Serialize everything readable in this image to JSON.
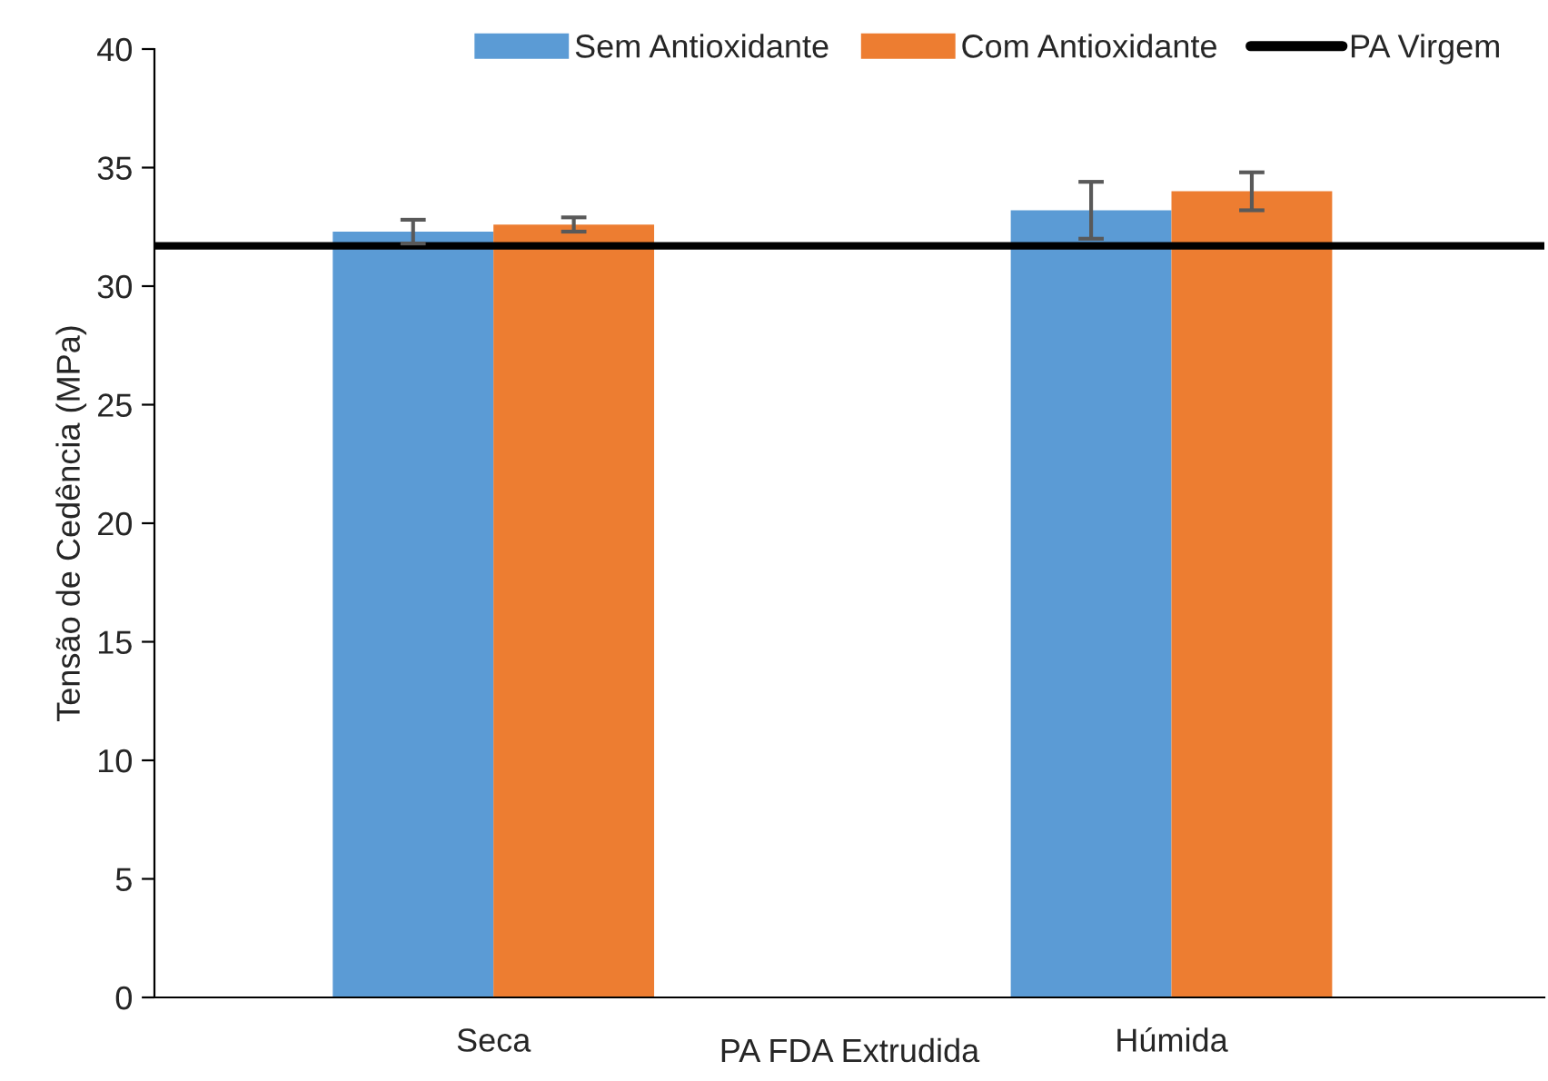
{
  "chart_data": {
    "type": "bar",
    "xlabel": "PA FDA Extrudida",
    "ylabel": "Tensão de Cedência (MPa)",
    "categories": [
      "Seca",
      "Húmida"
    ],
    "series": [
      {
        "name": "Sem Antioxidante",
        "color": "#5b9bd5",
        "values": [
          32.3,
          33.2
        ],
        "errors": [
          0.5,
          1.2
        ]
      },
      {
        "name": "Com Antioxidante",
        "color": "#ed7d31",
        "values": [
          32.6,
          34.0
        ],
        "errors": [
          0.3,
          0.8
        ]
      }
    ],
    "ref_lines": [
      {
        "axis": "y",
        "value": 31.7,
        "label": "PA Virgem",
        "color": "#000000",
        "line_style": "solid"
      }
    ],
    "ylim": [
      0,
      40
    ],
    "yticks": [
      0,
      5,
      10,
      15,
      20,
      25,
      30,
      35,
      40
    ],
    "grid": false,
    "legend": "top"
  }
}
